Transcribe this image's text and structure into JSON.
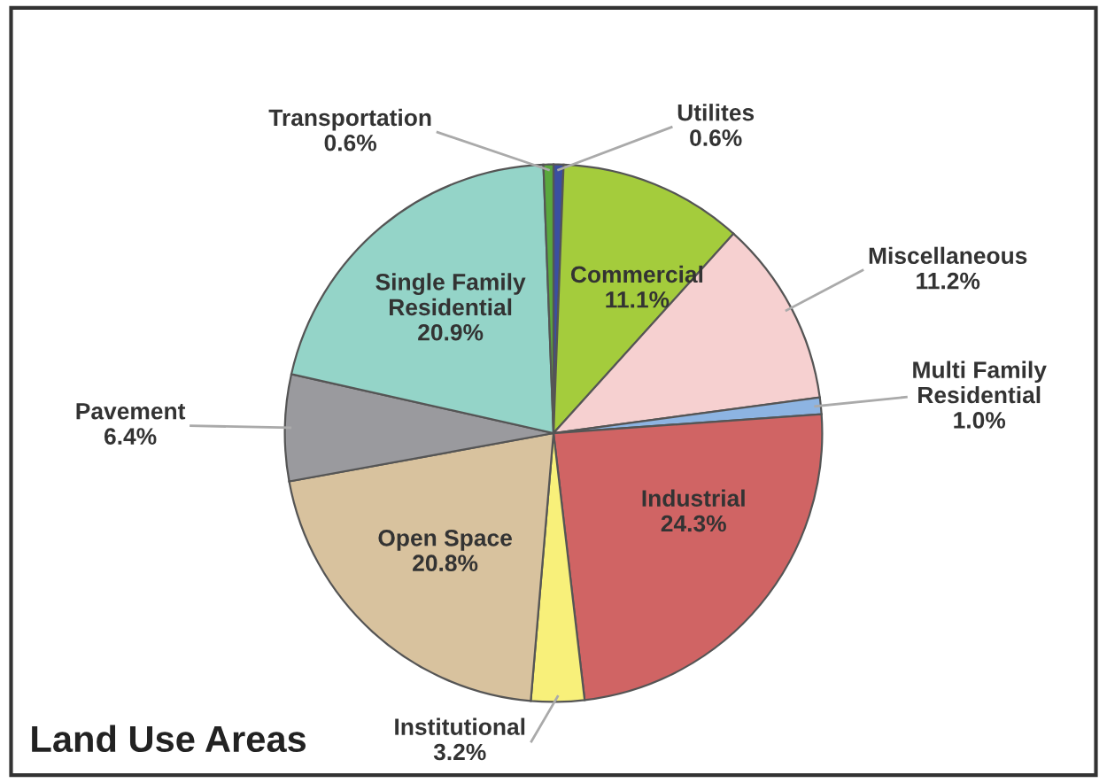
{
  "chart_data": {
    "type": "pie",
    "title": "Land Use Areas",
    "categories": [
      "Utilites",
      "Commercial",
      "Miscellaneous",
      "Multi Family Residential",
      "Industrial",
      "Institutional",
      "Open Space",
      "Pavement",
      "Single Family Residential",
      "Transportation"
    ],
    "values": [
      0.6,
      11.1,
      11.2,
      1.0,
      24.3,
      3.2,
      20.8,
      6.4,
      20.9,
      0.6
    ],
    "colors": [
      "#3b4fa0",
      "#a4cc3c",
      "#f6d0d0",
      "#8db4e2",
      "#d06464",
      "#f8f07a",
      "#d8c29e",
      "#9a9a9e",
      "#94d4c8",
      "#5aa83c"
    ],
    "value_labels": [
      "0.6%",
      "11.1%",
      "11.2%",
      "1.0%",
      "24.3%",
      "3.2%",
      "20.8%",
      "6.4%",
      "20.9%",
      "0.6%"
    ],
    "legend": false
  }
}
